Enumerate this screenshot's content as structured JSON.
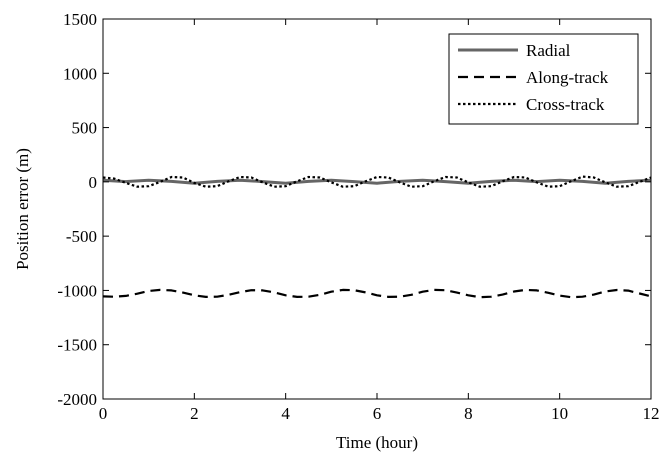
{
  "chart_data": {
    "type": "line",
    "title": "",
    "xlabel": "Time (hour)",
    "ylabel": "Position error (m)",
    "xlim": [
      0,
      12
    ],
    "ylim": [
      -2000,
      1500
    ],
    "xticks": [
      0,
      2,
      4,
      6,
      8,
      10,
      12
    ],
    "yticks": [
      -2000,
      -1500,
      -1000,
      -500,
      0,
      500,
      1000,
      1500
    ],
    "xtick_labels": [
      "0",
      "2",
      "4",
      "6",
      "8",
      "10",
      "12"
    ],
    "ytick_labels": [
      "-2000",
      "-1500",
      "-1000",
      "-500",
      "0",
      "500",
      "1000",
      "1500"
    ],
    "grid": false,
    "legend_position": "top-right",
    "series": [
      {
        "name": "Radial",
        "color": "#666666",
        "dash": "solid",
        "x": [
          0,
          0.5,
          1,
          1.5,
          2,
          2.5,
          3,
          3.5,
          4,
          4.5,
          5,
          5.5,
          6,
          6.5,
          7,
          7.5,
          8,
          8.5,
          9,
          9.5,
          10,
          10.5,
          11,
          11.5,
          12
        ],
        "values": [
          15,
          2,
          15,
          4,
          -12,
          4,
          15,
          2,
          -12,
          4,
          15,
          2,
          -12,
          4,
          15,
          2,
          -12,
          4,
          15,
          2,
          15,
          4,
          -12,
          4,
          15
        ]
      },
      {
        "name": "Along-track",
        "color": "#000000",
        "dash": "dashed",
        "x": [
          0,
          0.25,
          0.5,
          0.75,
          1,
          1.25,
          1.5,
          1.75,
          2,
          2.25,
          2.5,
          2.75,
          3,
          3.25,
          3.5,
          3.75,
          4,
          4.25,
          4.5,
          4.75,
          5,
          5.25,
          5.5,
          5.75,
          6,
          6.25,
          6.5,
          6.75,
          7,
          7.25,
          7.5,
          7.75,
          8,
          8.25,
          8.5,
          8.75,
          9,
          9.25,
          9.5,
          9.75,
          10,
          10.25,
          10.5,
          10.75,
          11,
          11.25,
          11.5,
          11.75,
          12
        ],
        "values": [
          -1055,
          -1058,
          -1050,
          -1030,
          -1005,
          -995,
          -1000,
          -1020,
          -1045,
          -1060,
          -1058,
          -1040,
          -1015,
          -998,
          -1000,
          -1018,
          -1045,
          -1060,
          -1058,
          -1040,
          -1012,
          -995,
          -998,
          -1018,
          -1045,
          -1060,
          -1058,
          -1040,
          -1012,
          -995,
          -998,
          -1020,
          -1045,
          -1062,
          -1058,
          -1038,
          -1010,
          -995,
          -1000,
          -1022,
          -1048,
          -1062,
          -1058,
          -1038,
          -1010,
          -996,
          -1002,
          -1028,
          -1055
        ]
      },
      {
        "name": "Cross-track",
        "color": "#000000",
        "dash": "dotted",
        "x": [
          0,
          0.25,
          0.5,
          0.75,
          1,
          1.25,
          1.5,
          1.75,
          2,
          2.25,
          2.5,
          2.75,
          3,
          3.25,
          3.5,
          3.75,
          4,
          4.25,
          4.5,
          4.75,
          5,
          5.25,
          5.5,
          5.75,
          6,
          6.25,
          6.5,
          6.75,
          7,
          7.25,
          7.5,
          7.75,
          8,
          8.25,
          8.5,
          8.75,
          9,
          9.25,
          9.5,
          9.75,
          10,
          10.25,
          10.5,
          10.75,
          11,
          11.25,
          11.5,
          11.75,
          12
        ],
        "values": [
          40,
          30,
          -10,
          -45,
          -40,
          0,
          45,
          40,
          -10,
          -45,
          -40,
          5,
          45,
          40,
          -5,
          -45,
          -40,
          5,
          45,
          40,
          -5,
          -45,
          -40,
          5,
          45,
          40,
          -5,
          -45,
          -40,
          5,
          45,
          40,
          -5,
          -45,
          -40,
          5,
          45,
          40,
          -5,
          -45,
          -40,
          5,
          48,
          40,
          -5,
          -45,
          -40,
          0,
          40
        ]
      }
    ]
  }
}
